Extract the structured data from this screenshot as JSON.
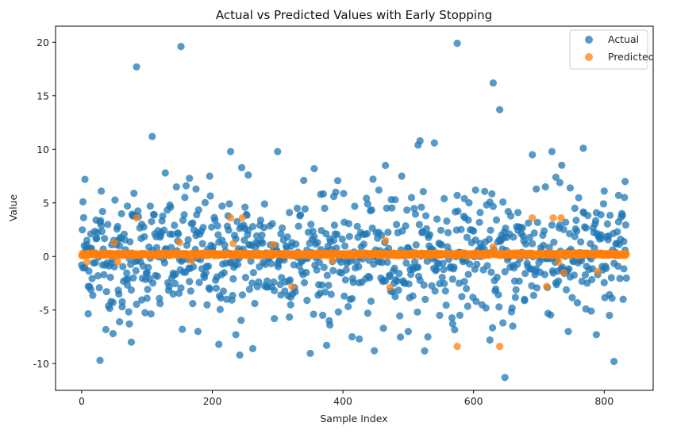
{
  "chart_data": {
    "type": "scatter",
    "title": "Actual vs Predicted Values with Early Stopping",
    "xlabel": "Sample Index",
    "ylabel": "Value",
    "xlim": [
      -40,
      875
    ],
    "ylim": [
      -12.5,
      21.5
    ],
    "xticks": [
      0,
      200,
      400,
      600,
      800
    ],
    "yticks": [
      -10,
      -5,
      0,
      5,
      10,
      15,
      20
    ],
    "grid": false,
    "legend_position": "top-right",
    "n_samples": 835,
    "series": [
      {
        "name": "Actual",
        "color": "#1f77b4",
        "alpha": 0.75,
        "notable_points": [
          {
            "x": 2,
            "y": 5.1
          },
          {
            "x": 5,
            "y": 7.2
          },
          {
            "x": 8,
            "y": 1.5
          },
          {
            "x": 10,
            "y": -2.8
          },
          {
            "x": 14,
            "y": 2.1
          },
          {
            "x": 22,
            "y": 3.4
          },
          {
            "x": 28,
            "y": -9.7
          },
          {
            "x": 30,
            "y": 6.1
          },
          {
            "x": 32,
            "y": 4.2
          },
          {
            "x": 45,
            "y": -4.2
          },
          {
            "x": 48,
            "y": -7.2
          },
          {
            "x": 55,
            "y": 2.8
          },
          {
            "x": 58,
            "y": -6.1
          },
          {
            "x": 62,
            "y": -4.7
          },
          {
            "x": 70,
            "y": 4.7
          },
          {
            "x": 73,
            "y": -6.3
          },
          {
            "x": 76,
            "y": -8.0
          },
          {
            "x": 80,
            "y": 5.9
          },
          {
            "x": 84,
            "y": 17.7
          },
          {
            "x": 92,
            "y": 3.0
          },
          {
            "x": 100,
            "y": -3.9
          },
          {
            "x": 105,
            "y": 4.7
          },
          {
            "x": 108,
            "y": 11.2
          },
          {
            "x": 120,
            "y": -4.4
          },
          {
            "x": 128,
            "y": 7.8
          },
          {
            "x": 135,
            "y": 4.8
          },
          {
            "x": 140,
            "y": -3.5
          },
          {
            "x": 147,
            "y": 2.2
          },
          {
            "x": 152,
            "y": 19.6
          },
          {
            "x": 154,
            "y": -6.8
          },
          {
            "x": 160,
            "y": 6.6
          },
          {
            "x": 165,
            "y": 7.3
          },
          {
            "x": 170,
            "y": -4.4
          },
          {
            "x": 175,
            "y": 6.3
          },
          {
            "x": 178,
            "y": -7.0
          },
          {
            "x": 196,
            "y": 7.5
          },
          {
            "x": 210,
            "y": -8.2
          },
          {
            "x": 215,
            "y": 4.7
          },
          {
            "x": 228,
            "y": 9.8
          },
          {
            "x": 236,
            "y": -7.3
          },
          {
            "x": 242,
            "y": -9.2
          },
          {
            "x": 245,
            "y": 8.3
          },
          {
            "x": 250,
            "y": 4.6
          },
          {
            "x": 255,
            "y": 7.6
          },
          {
            "x": 262,
            "y": -8.6
          },
          {
            "x": 280,
            "y": 4.9
          },
          {
            "x": 295,
            "y": -5.8
          },
          {
            "x": 300,
            "y": 9.8
          },
          {
            "x": 305,
            "y": -3.6
          },
          {
            "x": 318,
            "y": 4.1
          },
          {
            "x": 320,
            "y": -3.8
          },
          {
            "x": 330,
            "y": 4.5
          },
          {
            "x": 340,
            "y": 7.1
          },
          {
            "x": 345,
            "y": -4.1
          },
          {
            "x": 356,
            "y": 8.2
          },
          {
            "x": 366,
            "y": 5.8
          },
          {
            "x": 375,
            "y": -8.3
          },
          {
            "x": 380,
            "y": -6.4
          },
          {
            "x": 386,
            "y": 5.6
          },
          {
            "x": 402,
            "y": -3.7
          },
          {
            "x": 414,
            "y": -7.5
          },
          {
            "x": 425,
            "y": -7.7
          },
          {
            "x": 438,
            "y": 4.9
          },
          {
            "x": 448,
            "y": -8.8
          },
          {
            "x": 455,
            "y": 6.2
          },
          {
            "x": 462,
            "y": -6.7
          },
          {
            "x": 465,
            "y": 8.5
          },
          {
            "x": 480,
            "y": 5.3
          },
          {
            "x": 490,
            "y": 7.5
          },
          {
            "x": 500,
            "y": -7.0
          },
          {
            "x": 505,
            "y": 5.5
          },
          {
            "x": 515,
            "y": 10.4
          },
          {
            "x": 518,
            "y": 10.8
          },
          {
            "x": 530,
            "y": -7.5
          },
          {
            "x": 540,
            "y": 10.6
          },
          {
            "x": 548,
            "y": -5.5
          },
          {
            "x": 555,
            "y": 5.4
          },
          {
            "x": 568,
            "y": -6.3
          },
          {
            "x": 575,
            "y": 19.9
          },
          {
            "x": 586,
            "y": 5.4
          },
          {
            "x": 592,
            "y": 3.4
          },
          {
            "x": 603,
            "y": 6.2
          },
          {
            "x": 610,
            "y": 4.1
          },
          {
            "x": 625,
            "y": -7.8
          },
          {
            "x": 630,
            "y": 16.2
          },
          {
            "x": 640,
            "y": 13.7
          },
          {
            "x": 645,
            "y": -6.2
          },
          {
            "x": 648,
            "y": -11.3
          },
          {
            "x": 655,
            "y": 2.1
          },
          {
            "x": 660,
            "y": -6.5
          },
          {
            "x": 668,
            "y": 4.1
          },
          {
            "x": 678,
            "y": -4.0
          },
          {
            "x": 690,
            "y": 9.5
          },
          {
            "x": 696,
            "y": 6.3
          },
          {
            "x": 710,
            "y": 6.5
          },
          {
            "x": 720,
            "y": 9.8
          },
          {
            "x": 726,
            "y": 7.4
          },
          {
            "x": 732,
            "y": 6.9
          },
          {
            "x": 745,
            "y": -7.0
          },
          {
            "x": 748,
            "y": 6.4
          },
          {
            "x": 755,
            "y": 4.5
          },
          {
            "x": 768,
            "y": 10.1
          },
          {
            "x": 772,
            "y": -4.9
          },
          {
            "x": 780,
            "y": -5.1
          },
          {
            "x": 788,
            "y": -7.3
          },
          {
            "x": 795,
            "y": 3.9
          },
          {
            "x": 800,
            "y": 6.1
          },
          {
            "x": 808,
            "y": -5.5
          },
          {
            "x": 815,
            "y": -9.8
          },
          {
            "x": 822,
            "y": 5.7
          },
          {
            "x": 830,
            "y": 1.4
          },
          {
            "x": 832,
            "y": 7.0
          }
        ]
      },
      {
        "name": "Predicted",
        "color": "#ff7f0e",
        "alpha": 0.75,
        "baseline_value": 0.2,
        "notable_points": [
          {
            "x": 8,
            "y": -0.5
          },
          {
            "x": 50,
            "y": 1.3
          },
          {
            "x": 55,
            "y": -0.5
          },
          {
            "x": 84,
            "y": 3.6
          },
          {
            "x": 150,
            "y": 1.3
          },
          {
            "x": 168,
            "y": -0.4
          },
          {
            "x": 228,
            "y": 3.6
          },
          {
            "x": 232,
            "y": 1.2
          },
          {
            "x": 246,
            "y": 3.6
          },
          {
            "x": 293,
            "y": 1.1
          },
          {
            "x": 322,
            "y": -2.8
          },
          {
            "x": 384,
            "y": -0.4
          },
          {
            "x": 465,
            "y": 1.5
          },
          {
            "x": 472,
            "y": -2.9
          },
          {
            "x": 575,
            "y": -8.4
          },
          {
            "x": 630,
            "y": 0.9
          },
          {
            "x": 640,
            "y": -8.4
          },
          {
            "x": 690,
            "y": 3.6
          },
          {
            "x": 712,
            "y": -2.8
          },
          {
            "x": 722,
            "y": 3.6
          },
          {
            "x": 730,
            "y": -0.5
          },
          {
            "x": 734,
            "y": 3.6
          },
          {
            "x": 738,
            "y": -1.5
          },
          {
            "x": 790,
            "y": -1.4
          },
          {
            "x": 831,
            "y": 0.2
          }
        ]
      }
    ]
  }
}
